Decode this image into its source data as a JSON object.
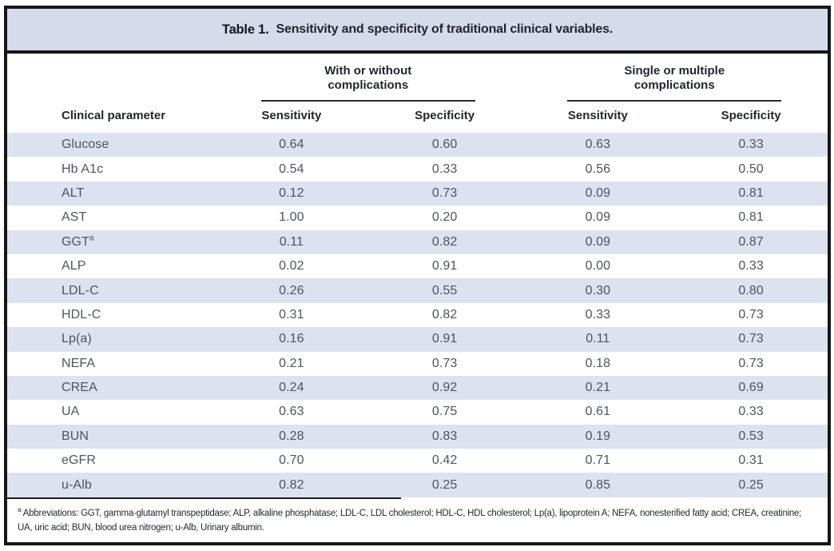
{
  "table": {
    "title_label": "Table 1.",
    "title_text": "Sensitivity and specificity of traditional clinical variables.",
    "column_groups": [
      {
        "label": "With or without complications"
      },
      {
        "label": "Single or multiple complications"
      }
    ],
    "columns": [
      "Clinical parameter",
      "Sensitivity",
      "Specificity",
      "Sensitivity",
      "Specificity"
    ],
    "rows": [
      {
        "parameter": "Glucose",
        "superscript": "",
        "values": [
          "0.64",
          "0.60",
          "0.63",
          "0.33"
        ]
      },
      {
        "parameter": "Hb A1c",
        "superscript": "",
        "values": [
          "0.54",
          "0.33",
          "0.56",
          "0.50"
        ]
      },
      {
        "parameter": "ALT",
        "superscript": "",
        "values": [
          "0.12",
          "0.73",
          "0.09",
          "0.81"
        ]
      },
      {
        "parameter": "AST",
        "superscript": "",
        "values": [
          "1.00",
          "0.20",
          "0.09",
          "0.81"
        ]
      },
      {
        "parameter": "GGT",
        "superscript": "a",
        "values": [
          "0.11",
          "0.82",
          "0.09",
          "0.87"
        ]
      },
      {
        "parameter": "ALP",
        "superscript": "",
        "values": [
          "0.02",
          "0.91",
          "0.00",
          "0.33"
        ]
      },
      {
        "parameter": "LDL-C",
        "superscript": "",
        "values": [
          "0.26",
          "0.55",
          "0.30",
          "0.80"
        ]
      },
      {
        "parameter": "HDL-C",
        "superscript": "",
        "values": [
          "0.31",
          "0.82",
          "0.33",
          "0.73"
        ]
      },
      {
        "parameter": "Lp(a)",
        "superscript": "",
        "values": [
          "0.16",
          "0.91",
          "0.11",
          "0.73"
        ]
      },
      {
        "parameter": "NEFA",
        "superscript": "",
        "values": [
          "0.21",
          "0.73",
          "0.18",
          "0.73"
        ]
      },
      {
        "parameter": "CREA",
        "superscript": "",
        "values": [
          "0.24",
          "0.92",
          "0.21",
          "0.69"
        ]
      },
      {
        "parameter": "UA",
        "superscript": "",
        "values": [
          "0.63",
          "0.75",
          "0.61",
          "0.33"
        ]
      },
      {
        "parameter": "BUN",
        "superscript": "",
        "values": [
          "0.28",
          "0.83",
          "0.19",
          "0.53"
        ]
      },
      {
        "parameter": "eGFR",
        "superscript": "",
        "values": [
          "0.70",
          "0.42",
          "0.71",
          "0.31"
        ]
      },
      {
        "parameter": "u-Alb",
        "superscript": "",
        "values": [
          "0.82",
          "0.25",
          "0.85",
          "0.25"
        ]
      }
    ],
    "footnote_marker": "a",
    "footnote_text": "Abbreviations: GGT, gamma-glutamyl transpeptidase; ALP, alkaline phosphatase; LDL-C, LDL cholesterol; HDL-C, HDL cholesterol; Lp(a), lipoprotein A; NEFA, nonesterified fatty acid; CREA, creatinine; UA, uric acid; BUN, blood urea nitrogen; u-Alb, Urinary albumin."
  },
  "colors": {
    "title_bar_bg": "#d4dcec",
    "row_band_bg": "#dbe2f0",
    "border": "#161616"
  }
}
